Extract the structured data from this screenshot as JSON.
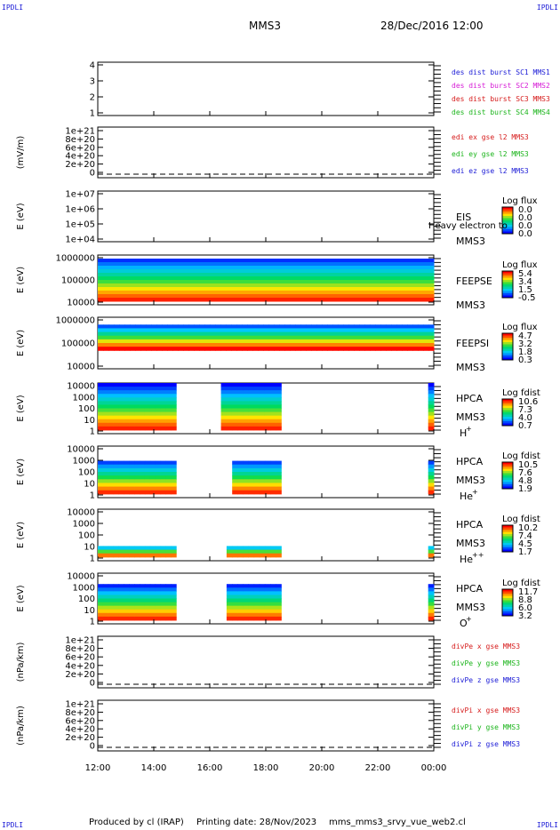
{
  "header": {
    "corner_tl": "IPDLI",
    "corner_tr": "IPDLI",
    "corner_bl": "IPDLI",
    "corner_br": "IPDLI",
    "spacecraft": "MMS3",
    "datetime": "28/Dec/2016 12:00"
  },
  "footer": {
    "produced": "Produced by cl (IRAP)",
    "printing_date": "Printing date: 28/Nov/2023",
    "filename": "mms_mms3_srvy_vue_web2.cl"
  },
  "colors": {
    "spectrogram_low": "#0000ff",
    "spectrogram_high": "#ff0000",
    "dashed_zero": "#000000"
  },
  "chart_data": [
    {
      "type": "line",
      "panel": "des-dist-burst",
      "ylabel": "",
      "yticks": [
        "4",
        "3",
        "2",
        "1"
      ],
      "ylim": [
        0.7,
        4.3
      ],
      "legend": [
        {
          "label": "des dist burst SC1 MMS1",
          "color": "#1b1bd6"
        },
        {
          "label": "des dist burst SC2 MMS2",
          "color": "#d61bd6"
        },
        {
          "label": "des dist burst SC3 MMS3",
          "color": "#d61b1b"
        },
        {
          "label": "des dist burst SC4 MMS4",
          "color": "#1bb41b"
        }
      ],
      "series": []
    },
    {
      "type": "line",
      "panel": "edi-e-gse",
      "ylabel": "(mV/m)",
      "yticks": [
        "1e+21",
        "8e+20",
        "6e+20",
        "4e+20",
        "2e+20",
        "0"
      ],
      "ylim": [
        -2e+19,
        1.05e+21
      ],
      "zero_line": true,
      "legend": [
        {
          "label": "edi ex gse l2 MMS3",
          "color": "#d61b1b"
        },
        {
          "label": "edi ey gse l2 MMS3",
          "color": "#1bb41b"
        },
        {
          "label": "edi ez gse l2 MMS3",
          "color": "#1b1bd6"
        }
      ],
      "series": []
    },
    {
      "type": "heatmap",
      "panel": "eis",
      "ylabel": "E (eV)",
      "yticks": [
        "1e+07",
        "1e+06",
        "1e+05",
        "1e+04"
      ],
      "instrument": "EIS",
      "overlay_text": "Heavy electron to",
      "spacecraft": "MMS3",
      "colorbar_title": "Log flux",
      "colorbar_ticks": [
        "0.0",
        "0.0",
        "0.0",
        "0.0"
      ],
      "coverage": [],
      "band": []
    },
    {
      "type": "heatmap",
      "panel": "feeps-e",
      "ylabel": "E (eV)",
      "yticks": [
        "1000000",
        "100000",
        "10000"
      ],
      "instrument": "FEEPSE",
      "spacecraft": "MMS3",
      "colorbar_title": "Log flux",
      "colorbar_ticks": [
        "5.4",
        "3.4",
        "1.5",
        "-0.5"
      ],
      "coverage": [
        [
          12.0,
          24.0
        ]
      ],
      "band": [
        0.02,
        0.96
      ]
    },
    {
      "type": "heatmap",
      "panel": "feeps-i",
      "ylabel": "E (eV)",
      "yticks": [
        "1000000",
        "100000",
        "10000"
      ],
      "instrument": "FEEPSI",
      "spacecraft": "MMS3",
      "colorbar_title": "Log flux",
      "colorbar_ticks": [
        "4.7",
        "3.2",
        "1.8",
        "0.3"
      ],
      "coverage": [
        [
          12.0,
          24.0
        ]
      ],
      "band": [
        0.1,
        0.62
      ]
    },
    {
      "type": "heatmap",
      "panel": "hpca-h",
      "ylabel": "E (eV)",
      "yticks": [
        "10000",
        "1000",
        "100",
        "10",
        "1"
      ],
      "instrument": "HPCA",
      "spacecraft": "MMS3",
      "species": "H",
      "species_charge": "+",
      "colorbar_title": "Log fdist",
      "colorbar_ticks": [
        "10.6",
        "7.3",
        "4.0",
        "0.7"
      ],
      "coverage": [
        [
          12.0,
          14.8
        ],
        [
          16.4,
          18.55
        ],
        [
          23.8,
          24.0
        ]
      ],
      "band": [
        0.0,
        0.96
      ]
    },
    {
      "type": "heatmap",
      "panel": "hpca-he",
      "ylabel": "E (eV)",
      "yticks": [
        "10000",
        "1000",
        "100",
        "10",
        "1"
      ],
      "instrument": "HPCA",
      "spacecraft": "MMS3",
      "species": "He",
      "species_charge": "+",
      "colorbar_title": "Log fdist",
      "colorbar_ticks": [
        "10.5",
        "7.6",
        "4.8",
        "1.9"
      ],
      "coverage": [
        [
          12.0,
          14.8
        ],
        [
          16.8,
          18.55
        ],
        [
          23.8,
          24.0
        ]
      ],
      "band": [
        0.25,
        0.96
      ]
    },
    {
      "type": "heatmap",
      "panel": "hpca-he2",
      "ylabel": "E (eV)",
      "yticks": [
        "10000",
        "1000",
        "100",
        "10",
        "1"
      ],
      "instrument": "HPCA",
      "spacecraft": "MMS3",
      "species": "He",
      "species_charge": "++",
      "colorbar_title": "Log fdist",
      "colorbar_ticks": [
        "10.2",
        "7.4",
        "4.5",
        "1.7"
      ],
      "coverage": [
        [
          12.0,
          14.8
        ],
        [
          16.6,
          18.55
        ],
        [
          23.8,
          24.0
        ]
      ],
      "band": [
        0.7,
        0.96
      ]
    },
    {
      "type": "heatmap",
      "panel": "hpca-o",
      "ylabel": "E (eV)",
      "yticks": [
        "10000",
        "1000",
        "100",
        "10",
        "1"
      ],
      "instrument": "HPCA",
      "spacecraft": "MMS3",
      "species": "O",
      "species_charge": "+",
      "colorbar_title": "Log fdist",
      "colorbar_ticks": [
        "11.7",
        "8.8",
        "6.0",
        "3.2"
      ],
      "coverage": [
        [
          12.0,
          14.8
        ],
        [
          16.6,
          18.55
        ],
        [
          23.8,
          24.0
        ]
      ],
      "band": [
        0.2,
        0.96
      ]
    },
    {
      "type": "line",
      "panel": "divpe",
      "ylabel": "(nPa/km)",
      "yticks": [
        "1e+21",
        "8e+20",
        "6e+20",
        "4e+20",
        "2e+20",
        "0"
      ],
      "ylim": [
        -2e+19,
        1.05e+21
      ],
      "zero_line": true,
      "legend": [
        {
          "label": "divPe x gse MMS3",
          "color": "#d61b1b"
        },
        {
          "label": "divPe y gse MMS3",
          "color": "#1bb41b"
        },
        {
          "label": "divPe z gse MMS3",
          "color": "#1b1bd6"
        }
      ],
      "series": []
    },
    {
      "type": "line",
      "panel": "divpi",
      "ylabel": "(nPa/km)",
      "yticks": [
        "1e+21",
        "8e+20",
        "6e+20",
        "4e+20",
        "2e+20",
        "0"
      ],
      "ylim": [
        -2e+19,
        1.05e+21
      ],
      "zero_line": true,
      "legend": [
        {
          "label": "divPi x gse MMS3",
          "color": "#d61b1b"
        },
        {
          "label": "divPi y gse MMS3",
          "color": "#1bb41b"
        },
        {
          "label": "divPi z gse MMS3",
          "color": "#1b1bd6"
        }
      ],
      "series": []
    }
  ],
  "time_axis": {
    "ticks": [
      "12:00",
      "14:00",
      "16:00",
      "18:00",
      "20:00",
      "22:00",
      "00:00"
    ],
    "range_hours": [
      12,
      24
    ]
  }
}
